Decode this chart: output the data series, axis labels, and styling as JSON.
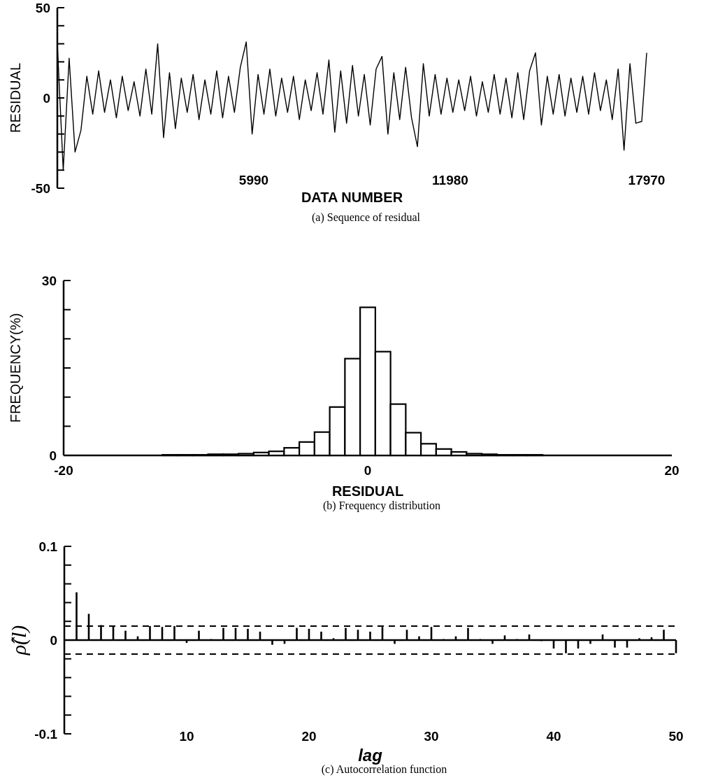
{
  "chart_data": [
    {
      "type": "line",
      "xlabel": "DATA NUMBER",
      "ylabel": "RESIDUAL",
      "annotations": [
        "(a) Sequence of residual"
      ],
      "xlim": [
        0,
        17970
      ],
      "xticks": [
        5990,
        11980,
        17970
      ],
      "ylim": [
        -50,
        50
      ],
      "yticks": [
        50,
        {
          "value": 40,
          "label": null
        },
        {
          "value": 30,
          "label": null
        },
        {
          "value": 20,
          "label": null
        },
        {
          "value": 10,
          "label": null
        },
        0,
        {
          "value": -10,
          "label": null
        },
        {
          "value": -20,
          "label": null
        },
        {
          "value": -30,
          "label": null
        },
        {
          "value": -40,
          "label": null
        },
        -50
      ],
      "x": [
        0,
        180,
        360,
        540,
        720,
        900,
        1080,
        1260,
        1440,
        1620,
        1800,
        1980,
        2160,
        2340,
        2520,
        2700,
        2880,
        3060,
        3240,
        3420,
        3600,
        3780,
        3960,
        4140,
        4320,
        4500,
        4680,
        4860,
        5040,
        5220,
        5400,
        5580,
        5760,
        5940,
        6120,
        6300,
        6480,
        6660,
        6840,
        7020,
        7200,
        7380,
        7560,
        7740,
        7920,
        8100,
        8280,
        8460,
        8640,
        8820,
        9000,
        9180,
        9360,
        9540,
        9720,
        9900,
        10080,
        10260,
        10440,
        10620,
        10800,
        10980,
        11160,
        11340,
        11520,
        11700,
        11880,
        12060,
        12240,
        12420,
        12600,
        12780,
        12960,
        13140,
        13320,
        13500,
        13680,
        13860,
        14040,
        14220,
        14400,
        14580,
        14760,
        14940,
        15120,
        15300,
        15480,
        15660,
        15840,
        16020,
        16200,
        16380,
        16560,
        16740,
        16920,
        17100,
        17280,
        17460,
        17640,
        17820,
        17970
      ],
      "series": [
        {
          "color": "#000000",
          "values": [
            30,
            -40,
            22,
            -30,
            -18,
            12,
            -9,
            15,
            -8,
            10,
            -11,
            12,
            -7,
            9,
            -10,
            16,
            -9,
            30,
            -22,
            14,
            -17,
            11,
            -8,
            13,
            -12,
            10,
            -9,
            15,
            -11,
            12,
            -8,
            17,
            31,
            -20,
            13,
            -9,
            16,
            -10,
            11,
            -8,
            12,
            -12,
            10,
            -7,
            14,
            -9,
            21,
            -19,
            15,
            -14,
            18,
            -10,
            13,
            -15,
            16,
            23,
            -20,
            14,
            -12,
            17,
            -11,
            -27,
            19,
            -10,
            13,
            -9,
            11,
            -8,
            10,
            -7,
            12,
            -10,
            9,
            -8,
            13,
            -9,
            11,
            -11,
            14,
            -12,
            15,
            25,
            -15,
            12,
            -9,
            13,
            -10,
            11,
            -8,
            12,
            -9,
            14,
            -7,
            10,
            -12,
            16,
            -29,
            19,
            -14,
            -13,
            25
          ]
        }
      ]
    },
    {
      "type": "histogram",
      "xlabel": "RESIDUAL",
      "ylabel": "FREQUENCY(%)",
      "annotations": [
        "(b) Frequency distribution"
      ],
      "xlim": [
        -20,
        20
      ],
      "xticks": [
        -20,
        0,
        20
      ],
      "ylim": [
        0,
        30
      ],
      "yticks": [
        30,
        {
          "value": 25,
          "label": null
        },
        {
          "value": 20,
          "label": null
        },
        {
          "value": 15,
          "label": null
        },
        {
          "value": 10,
          "label": null
        },
        {
          "value": 5,
          "label": null
        },
        0
      ],
      "color": "#000000",
      "bins": [
        -19.5,
        -18.5,
        -17.5,
        -16.5,
        -15.5,
        -14.5,
        -13.5,
        -12.5,
        -11.5,
        -10.5,
        -9.5,
        -8.5,
        -7.5,
        -6.5,
        -5.5,
        -4.5,
        -3.5,
        -2.5,
        -1.5,
        -0.5,
        0.5,
        1.5,
        2.5,
        3.5,
        4.5,
        5.5,
        6.5,
        7.5,
        8.5,
        9.5,
        10.5,
        11.5,
        12.5,
        13.5,
        14.5,
        15.5,
        16.5,
        17.5,
        18.5,
        19.5
      ],
      "values": [
        0,
        0,
        0,
        0,
        0,
        0,
        0.1,
        0.1,
        0.1,
        0.2,
        0.2,
        0.3,
        0.5,
        0.7,
        1.3,
        2.3,
        4.0,
        8.3,
        16.6,
        25.4,
        17.8,
        8.8,
        3.9,
        2.0,
        1.1,
        0.6,
        0.3,
        0.2,
        0.1,
        0.1,
        0.1,
        0,
        0,
        0,
        0,
        0,
        0,
        0,
        0
      ]
    },
    {
      "type": "bar",
      "xlabel": "lag",
      "ylabel": "ρ̂(l)",
      "annotations": [
        "(c) Autocorrelation function"
      ],
      "xlim": [
        0,
        50
      ],
      "xticks": [
        10,
        20,
        30,
        40,
        50
      ],
      "ylim": [
        -0.1,
        0.1
      ],
      "yticks": [
        0.1,
        {
          "value": 0.08,
          "label": null
        },
        {
          "value": 0.06,
          "label": null
        },
        {
          "value": 0.04,
          "label": null
        },
        {
          "value": 0.02,
          "label": null
        },
        0,
        {
          "value": -0.02,
          "label": null
        },
        {
          "value": -0.04,
          "label": null
        },
        {
          "value": -0.06,
          "label": null
        },
        {
          "value": -0.08,
          "label": null
        },
        -0.1
      ],
      "ref_lines": [
        {
          "axis": "y",
          "value": 0.015,
          "line_style": "dashed",
          "color": "#000000"
        },
        {
          "axis": "y",
          "value": -0.015,
          "line_style": "dashed",
          "color": "#000000"
        }
      ],
      "x": [
        1,
        2,
        3,
        4,
        5,
        6,
        7,
        8,
        9,
        10,
        11,
        12,
        13,
        14,
        15,
        16,
        17,
        18,
        19,
        20,
        21,
        22,
        23,
        24,
        25,
        26,
        27,
        28,
        29,
        30,
        31,
        32,
        33,
        34,
        35,
        36,
        37,
        38,
        39,
        40,
        41,
        42,
        43,
        44,
        45,
        46,
        47,
        48,
        49,
        50
      ],
      "series": [
        {
          "color": "#000000",
          "values": [
            0.051,
            0.028,
            0.016,
            0.015,
            0.01,
            0.004,
            0.015,
            0.014,
            0.015,
            -0.003,
            0.01,
            0.001,
            0.013,
            0.013,
            0.012,
            0.009,
            -0.005,
            -0.004,
            0.013,
            0.012,
            0.009,
            0.002,
            0.013,
            0.011,
            0.009,
            0.014,
            -0.004,
            0.011,
            0.004,
            0.014,
            0.001,
            0.004,
            0.013,
            0.001,
            -0.004,
            0.005,
            0.001,
            0.006,
            -0.001,
            -0.009,
            -0.014,
            -0.009,
            -0.004,
            0.006,
            -0.008,
            -0.008,
            0.002,
            0.003,
            0.011,
            -0.014
          ]
        }
      ]
    }
  ]
}
